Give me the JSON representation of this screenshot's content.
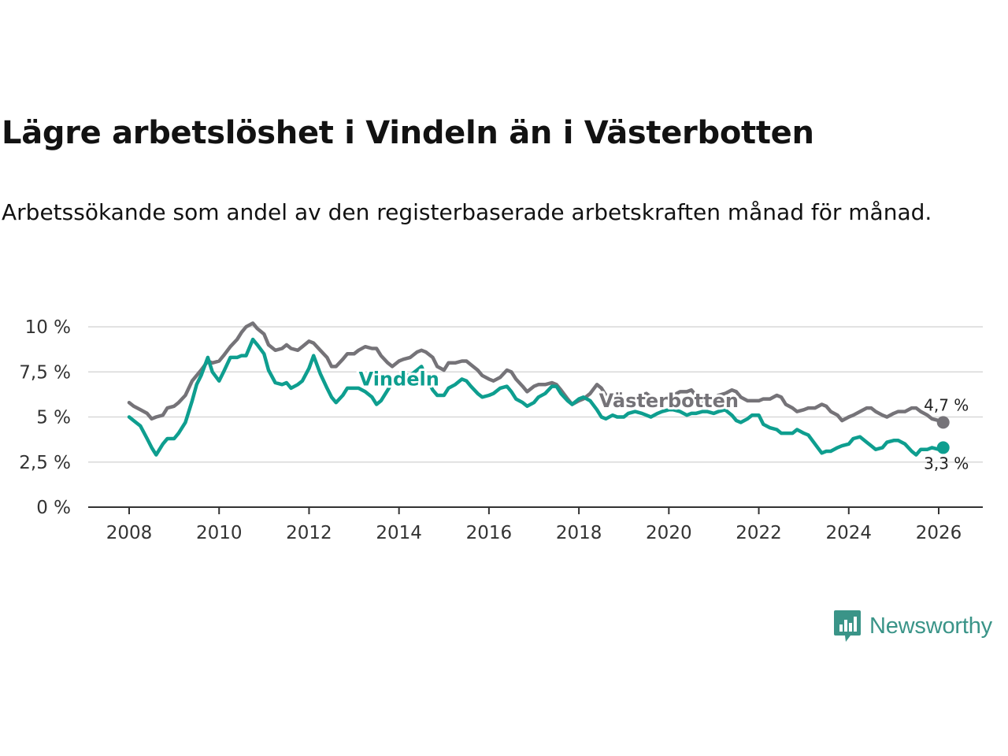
{
  "title": "Lägre arbetslöshet i Vindeln än i Västerbotten",
  "subtitle": "Arbetssökande som andel av den registerbaserade arbetskraften månad för månad.",
  "brand": "Newsworthy",
  "colors": {
    "vasterbotten": "#757378",
    "vindeln": "#0e9e8f",
    "grid": "#d8d8d8",
    "axis": "#333333",
    "brand": "#3a9488"
  },
  "chart_data": {
    "type": "line",
    "title": "Lägre arbetslöshet i Vindeln än i Västerbotten",
    "xlabel": "",
    "ylabel": "",
    "xlim": [
      2007.8,
      2027.0
    ],
    "ylim": [
      0,
      10
    ],
    "x_ticks": [
      2008,
      2010,
      2012,
      2014,
      2016,
      2018,
      2020,
      2022,
      2024,
      2026
    ],
    "y_ticks": [
      0,
      2.5,
      5,
      7.5,
      10
    ],
    "y_tick_labels": [
      "0 %",
      "2,5 %",
      "5 %",
      "7,5 %",
      "10 %"
    ],
    "grid": true,
    "series": [
      {
        "name": "Västerbotten",
        "end_label": "4,7 %",
        "points": [
          [
            2008.0,
            5.8
          ],
          [
            2008.1,
            5.6
          ],
          [
            2008.25,
            5.4
          ],
          [
            2008.4,
            5.2
          ],
          [
            2008.5,
            4.9
          ],
          [
            2008.6,
            5.0
          ],
          [
            2008.75,
            5.1
          ],
          [
            2008.85,
            5.5
          ],
          [
            2009.0,
            5.6
          ],
          [
            2009.1,
            5.8
          ],
          [
            2009.25,
            6.2
          ],
          [
            2009.4,
            7.0
          ],
          [
            2009.5,
            7.3
          ],
          [
            2009.6,
            7.6
          ],
          [
            2009.75,
            8.1
          ],
          [
            2009.85,
            8.0
          ],
          [
            2010.0,
            8.1
          ],
          [
            2010.1,
            8.4
          ],
          [
            2010.25,
            8.9
          ],
          [
            2010.4,
            9.3
          ],
          [
            2010.5,
            9.7
          ],
          [
            2010.6,
            10.0
          ],
          [
            2010.75,
            10.2
          ],
          [
            2010.85,
            9.9
          ],
          [
            2011.0,
            9.6
          ],
          [
            2011.1,
            9.0
          ],
          [
            2011.25,
            8.7
          ],
          [
            2011.4,
            8.8
          ],
          [
            2011.5,
            9.0
          ],
          [
            2011.6,
            8.8
          ],
          [
            2011.75,
            8.7
          ],
          [
            2011.85,
            8.9
          ],
          [
            2012.0,
            9.2
          ],
          [
            2012.1,
            9.1
          ],
          [
            2012.25,
            8.7
          ],
          [
            2012.4,
            8.3
          ],
          [
            2012.5,
            7.8
          ],
          [
            2012.6,
            7.8
          ],
          [
            2012.75,
            8.2
          ],
          [
            2012.85,
            8.5
          ],
          [
            2013.0,
            8.5
          ],
          [
            2013.1,
            8.7
          ],
          [
            2013.25,
            8.9
          ],
          [
            2013.4,
            8.8
          ],
          [
            2013.5,
            8.8
          ],
          [
            2013.6,
            8.4
          ],
          [
            2013.75,
            8.0
          ],
          [
            2013.85,
            7.8
          ],
          [
            2014.0,
            8.1
          ],
          [
            2014.1,
            8.2
          ],
          [
            2014.25,
            8.3
          ],
          [
            2014.4,
            8.6
          ],
          [
            2014.5,
            8.7
          ],
          [
            2014.6,
            8.6
          ],
          [
            2014.75,
            8.3
          ],
          [
            2014.85,
            7.8
          ],
          [
            2015.0,
            7.6
          ],
          [
            2015.1,
            8.0
          ],
          [
            2015.25,
            8.0
          ],
          [
            2015.4,
            8.1
          ],
          [
            2015.5,
            8.1
          ],
          [
            2015.6,
            7.9
          ],
          [
            2015.75,
            7.6
          ],
          [
            2015.85,
            7.3
          ],
          [
            2016.0,
            7.1
          ],
          [
            2016.1,
            7.0
          ],
          [
            2016.25,
            7.2
          ],
          [
            2016.4,
            7.6
          ],
          [
            2016.5,
            7.5
          ],
          [
            2016.6,
            7.1
          ],
          [
            2016.75,
            6.7
          ],
          [
            2016.85,
            6.4
          ],
          [
            2017.0,
            6.7
          ],
          [
            2017.1,
            6.8
          ],
          [
            2017.25,
            6.8
          ],
          [
            2017.4,
            6.9
          ],
          [
            2017.5,
            6.8
          ],
          [
            2017.6,
            6.5
          ],
          [
            2017.75,
            6.0
          ],
          [
            2017.85,
            5.7
          ],
          [
            2018.0,
            5.9
          ],
          [
            2018.1,
            6.0
          ],
          [
            2018.25,
            6.3
          ],
          [
            2018.4,
            6.8
          ],
          [
            2018.5,
            6.6
          ],
          [
            2018.6,
            6.2
          ],
          [
            2018.75,
            5.9
          ],
          [
            2018.85,
            5.8
          ],
          [
            2019.0,
            6.0
          ],
          [
            2019.1,
            6.1
          ],
          [
            2019.25,
            6.0
          ],
          [
            2019.4,
            6.2
          ],
          [
            2019.5,
            6.3
          ],
          [
            2019.6,
            6.1
          ],
          [
            2019.75,
            5.9
          ],
          [
            2019.85,
            5.9
          ],
          [
            2020.0,
            6.0
          ],
          [
            2020.1,
            6.2
          ],
          [
            2020.25,
            6.4
          ],
          [
            2020.4,
            6.4
          ],
          [
            2020.5,
            6.5
          ],
          [
            2020.6,
            6.2
          ],
          [
            2020.75,
            5.9
          ],
          [
            2020.85,
            5.9
          ],
          [
            2021.0,
            6.0
          ],
          [
            2021.1,
            6.2
          ],
          [
            2021.25,
            6.3
          ],
          [
            2021.4,
            6.5
          ],
          [
            2021.5,
            6.4
          ],
          [
            2021.6,
            6.1
          ],
          [
            2021.75,
            5.9
          ],
          [
            2021.85,
            5.9
          ],
          [
            2022.0,
            5.9
          ],
          [
            2022.1,
            6.0
          ],
          [
            2022.25,
            6.0
          ],
          [
            2022.4,
            6.2
          ],
          [
            2022.5,
            6.1
          ],
          [
            2022.6,
            5.7
          ],
          [
            2022.75,
            5.5
          ],
          [
            2022.85,
            5.3
          ],
          [
            2023.0,
            5.4
          ],
          [
            2023.1,
            5.5
          ],
          [
            2023.25,
            5.5
          ],
          [
            2023.4,
            5.7
          ],
          [
            2023.5,
            5.6
          ],
          [
            2023.6,
            5.3
          ],
          [
            2023.75,
            5.1
          ],
          [
            2023.85,
            4.8
          ],
          [
            2024.0,
            5.0
          ],
          [
            2024.1,
            5.1
          ],
          [
            2024.25,
            5.3
          ],
          [
            2024.4,
            5.5
          ],
          [
            2024.5,
            5.5
          ],
          [
            2024.6,
            5.3
          ],
          [
            2024.75,
            5.1
          ],
          [
            2024.85,
            5.0
          ],
          [
            2025.0,
            5.2
          ],
          [
            2025.1,
            5.3
          ],
          [
            2025.25,
            5.3
          ],
          [
            2025.4,
            5.5
          ],
          [
            2025.5,
            5.5
          ],
          [
            2025.6,
            5.3
          ],
          [
            2025.75,
            5.1
          ],
          [
            2025.85,
            4.9
          ],
          [
            2026.0,
            4.8
          ],
          [
            2026.1,
            4.7
          ]
        ]
      },
      {
        "name": "Vindeln",
        "end_label": "3,3 %",
        "points": [
          [
            2008.0,
            5.0
          ],
          [
            2008.1,
            4.8
          ],
          [
            2008.25,
            4.5
          ],
          [
            2008.4,
            3.8
          ],
          [
            2008.5,
            3.3
          ],
          [
            2008.6,
            2.9
          ],
          [
            2008.75,
            3.5
          ],
          [
            2008.85,
            3.8
          ],
          [
            2009.0,
            3.8
          ],
          [
            2009.1,
            4.1
          ],
          [
            2009.25,
            4.7
          ],
          [
            2009.4,
            5.9
          ],
          [
            2009.5,
            6.8
          ],
          [
            2009.6,
            7.3
          ],
          [
            2009.75,
            8.3
          ],
          [
            2009.85,
            7.5
          ],
          [
            2010.0,
            7.0
          ],
          [
            2010.1,
            7.5
          ],
          [
            2010.25,
            8.3
          ],
          [
            2010.4,
            8.3
          ],
          [
            2010.5,
            8.4
          ],
          [
            2010.6,
            8.4
          ],
          [
            2010.75,
            9.3
          ],
          [
            2010.85,
            9.0
          ],
          [
            2011.0,
            8.5
          ],
          [
            2011.1,
            7.6
          ],
          [
            2011.25,
            6.9
          ],
          [
            2011.4,
            6.8
          ],
          [
            2011.5,
            6.9
          ],
          [
            2011.6,
            6.6
          ],
          [
            2011.75,
            6.8
          ],
          [
            2011.85,
            7.0
          ],
          [
            2012.0,
            7.7
          ],
          [
            2012.1,
            8.4
          ],
          [
            2012.25,
            7.4
          ],
          [
            2012.4,
            6.6
          ],
          [
            2012.5,
            6.1
          ],
          [
            2012.6,
            5.8
          ],
          [
            2012.75,
            6.2
          ],
          [
            2012.85,
            6.6
          ],
          [
            2013.0,
            6.6
          ],
          [
            2013.1,
            6.6
          ],
          [
            2013.25,
            6.4
          ],
          [
            2013.4,
            6.1
          ],
          [
            2013.5,
            5.7
          ],
          [
            2013.6,
            5.9
          ],
          [
            2013.75,
            6.5
          ],
          [
            2013.85,
            6.9
          ],
          [
            2014.0,
            7.0
          ],
          [
            2014.1,
            7.3
          ],
          [
            2014.25,
            7.3
          ],
          [
            2014.4,
            7.6
          ],
          [
            2014.5,
            7.8
          ],
          [
            2014.6,
            7.2
          ],
          [
            2014.75,
            6.5
          ],
          [
            2014.85,
            6.2
          ],
          [
            2015.0,
            6.2
          ],
          [
            2015.1,
            6.6
          ],
          [
            2015.25,
            6.8
          ],
          [
            2015.4,
            7.1
          ],
          [
            2015.5,
            7.0
          ],
          [
            2015.6,
            6.7
          ],
          [
            2015.75,
            6.3
          ],
          [
            2015.85,
            6.1
          ],
          [
            2016.0,
            6.2
          ],
          [
            2016.1,
            6.3
          ],
          [
            2016.25,
            6.6
          ],
          [
            2016.4,
            6.7
          ],
          [
            2016.5,
            6.4
          ],
          [
            2016.6,
            6.0
          ],
          [
            2016.75,
            5.8
          ],
          [
            2016.85,
            5.6
          ],
          [
            2017.0,
            5.8
          ],
          [
            2017.1,
            6.1
          ],
          [
            2017.25,
            6.3
          ],
          [
            2017.4,
            6.7
          ],
          [
            2017.5,
            6.7
          ],
          [
            2017.6,
            6.3
          ],
          [
            2017.75,
            5.9
          ],
          [
            2017.85,
            5.7
          ],
          [
            2018.0,
            6.0
          ],
          [
            2018.1,
            6.1
          ],
          [
            2018.25,
            5.9
          ],
          [
            2018.4,
            5.4
          ],
          [
            2018.5,
            5.0
          ],
          [
            2018.6,
            4.9
          ],
          [
            2018.75,
            5.1
          ],
          [
            2018.85,
            5.0
          ],
          [
            2019.0,
            5.0
          ],
          [
            2019.1,
            5.2
          ],
          [
            2019.25,
            5.3
          ],
          [
            2019.4,
            5.2
          ],
          [
            2019.5,
            5.1
          ],
          [
            2019.6,
            5.0
          ],
          [
            2019.75,
            5.2
          ],
          [
            2019.85,
            5.3
          ],
          [
            2020.0,
            5.4
          ],
          [
            2020.1,
            5.4
          ],
          [
            2020.25,
            5.3
          ],
          [
            2020.4,
            5.1
          ],
          [
            2020.5,
            5.2
          ],
          [
            2020.6,
            5.2
          ],
          [
            2020.75,
            5.3
          ],
          [
            2020.85,
            5.3
          ],
          [
            2021.0,
            5.2
          ],
          [
            2021.1,
            5.3
          ],
          [
            2021.25,
            5.4
          ],
          [
            2021.4,
            5.1
          ],
          [
            2021.5,
            4.8
          ],
          [
            2021.6,
            4.7
          ],
          [
            2021.75,
            4.9
          ],
          [
            2021.85,
            5.1
          ],
          [
            2022.0,
            5.1
          ],
          [
            2022.1,
            4.6
          ],
          [
            2022.25,
            4.4
          ],
          [
            2022.4,
            4.3
          ],
          [
            2022.5,
            4.1
          ],
          [
            2022.6,
            4.1
          ],
          [
            2022.75,
            4.1
          ],
          [
            2022.85,
            4.3
          ],
          [
            2023.0,
            4.1
          ],
          [
            2023.1,
            4.0
          ],
          [
            2023.25,
            3.5
          ],
          [
            2023.4,
            3.0
          ],
          [
            2023.5,
            3.1
          ],
          [
            2023.6,
            3.1
          ],
          [
            2023.75,
            3.3
          ],
          [
            2023.85,
            3.4
          ],
          [
            2024.0,
            3.5
          ],
          [
            2024.1,
            3.8
          ],
          [
            2024.25,
            3.9
          ],
          [
            2024.4,
            3.6
          ],
          [
            2024.5,
            3.4
          ],
          [
            2024.6,
            3.2
          ],
          [
            2024.75,
            3.3
          ],
          [
            2024.85,
            3.6
          ],
          [
            2025.0,
            3.7
          ],
          [
            2025.1,
            3.7
          ],
          [
            2025.25,
            3.5
          ],
          [
            2025.4,
            3.1
          ],
          [
            2025.5,
            2.9
          ],
          [
            2025.6,
            3.2
          ],
          [
            2025.75,
            3.2
          ],
          [
            2025.85,
            3.3
          ],
          [
            2026.0,
            3.2
          ],
          [
            2026.1,
            3.3
          ]
        ]
      }
    ],
    "series_labels": [
      {
        "name": "Vindeln",
        "text": "Vindeln",
        "at": [
          2014.0,
          7.1
        ]
      },
      {
        "name": "Västerbotten",
        "text": "Västerbotten",
        "at": [
          2020.0,
          5.9
        ]
      }
    ]
  }
}
